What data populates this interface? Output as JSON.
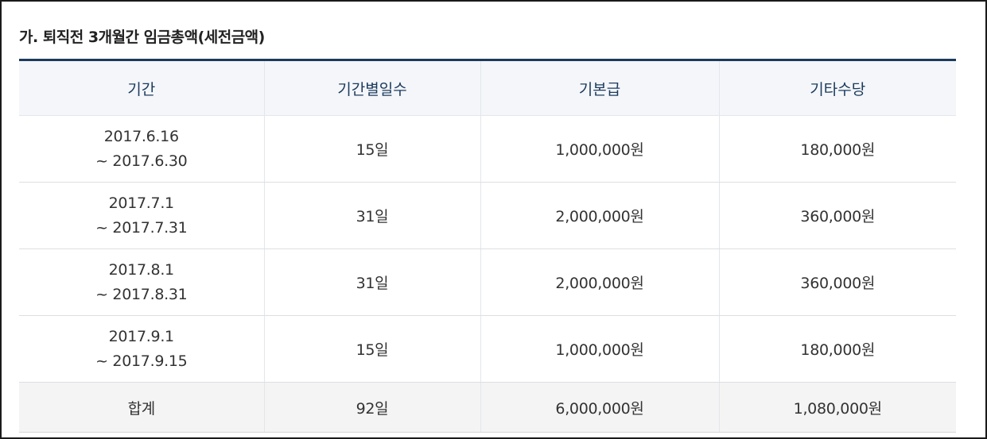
{
  "title": "가. 퇴직전 3개월간 임금총액(세전금액)",
  "table": {
    "headers": [
      "기간",
      "기간별일수",
      "기본급",
      "기타수당"
    ],
    "rows": [
      {
        "period_start": "2017.6.16",
        "period_end": "~ 2017.6.30",
        "days": "15일",
        "base": "1,000,000원",
        "other": "180,000원"
      },
      {
        "period_start": "2017.7.1",
        "period_end": "~ 2017.7.31",
        "days": "31일",
        "base": "2,000,000원",
        "other": "360,000원"
      },
      {
        "period_start": "2017.8.1",
        "period_end": "~ 2017.8.31",
        "days": "31일",
        "base": "2,000,000원",
        "other": "360,000원"
      },
      {
        "period_start": "2017.9.1",
        "period_end": "~ 2017.9.15",
        "days": "15일",
        "base": "1,000,000원",
        "other": "180,000원"
      }
    ],
    "total": {
      "label": "합계",
      "days": "92일",
      "base": "6,000,000원",
      "other": "1,080,000원"
    }
  },
  "colors": {
    "header_text": "#1b3a5c",
    "header_bg": "#f4f6fa",
    "top_rule": "#1b3a5c",
    "total_bg": "#f4f4f4"
  }
}
